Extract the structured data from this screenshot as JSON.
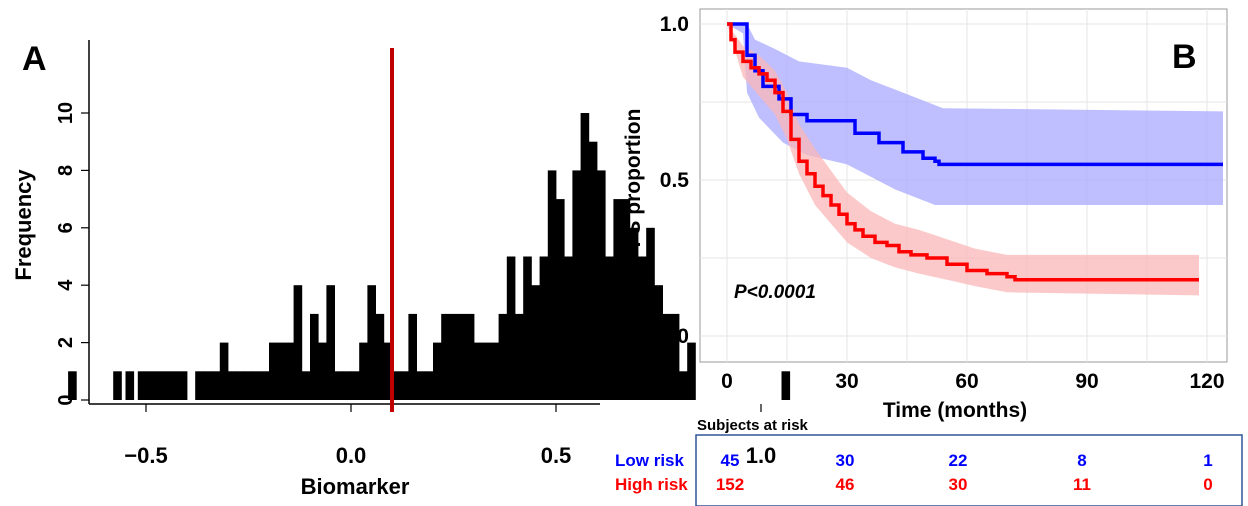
{
  "panel_a": {
    "letter": "A",
    "chart_data": {
      "type": "bar",
      "title": "",
      "xlabel": "Biomarker",
      "ylabel": "Frequency",
      "x_ticks": [
        "−0.5",
        "0.0",
        "0.5",
        "1.0"
      ],
      "y_ticks": [
        "0",
        "2",
        "4",
        "6",
        "8",
        "10"
      ],
      "xlim": [
        -0.7,
        1.1
      ],
      "ylim": [
        0,
        12
      ],
      "bin_width": 0.02,
      "bins": [
        [
          -0.68,
          1
        ],
        [
          -0.57,
          1
        ],
        [
          -0.54,
          1
        ],
        [
          -0.51,
          1
        ],
        [
          -0.49,
          1
        ],
        [
          -0.47,
          1
        ],
        [
          -0.45,
          1
        ],
        [
          -0.43,
          1
        ],
        [
          -0.41,
          1
        ],
        [
          -0.37,
          1
        ],
        [
          -0.35,
          1
        ],
        [
          -0.33,
          1
        ],
        [
          -0.31,
          2
        ],
        [
          -0.29,
          1
        ],
        [
          -0.27,
          1
        ],
        [
          -0.25,
          1
        ],
        [
          -0.23,
          1
        ],
        [
          -0.21,
          1
        ],
        [
          -0.19,
          2
        ],
        [
          -0.17,
          2
        ],
        [
          -0.15,
          2
        ],
        [
          -0.13,
          4
        ],
        [
          -0.11,
          1
        ],
        [
          -0.09,
          3
        ],
        [
          -0.07,
          2
        ],
        [
          -0.05,
          4
        ],
        [
          -0.03,
          1
        ],
        [
          -0.01,
          1
        ],
        [
          0.01,
          1
        ],
        [
          0.03,
          2
        ],
        [
          0.05,
          4
        ],
        [
          0.07,
          3
        ],
        [
          0.09,
          2
        ],
        [
          0.11,
          1
        ],
        [
          0.13,
          1
        ],
        [
          0.15,
          3
        ],
        [
          0.17,
          1
        ],
        [
          0.19,
          1
        ],
        [
          0.21,
          2
        ],
        [
          0.23,
          3
        ],
        [
          0.25,
          3
        ],
        [
          0.27,
          3
        ],
        [
          0.29,
          3
        ],
        [
          0.31,
          2
        ],
        [
          0.33,
          2
        ],
        [
          0.35,
          2
        ],
        [
          0.37,
          3
        ],
        [
          0.39,
          5
        ],
        [
          0.41,
          3
        ],
        [
          0.43,
          5
        ],
        [
          0.45,
          4
        ],
        [
          0.47,
          5
        ],
        [
          0.49,
          8
        ],
        [
          0.51,
          7
        ],
        [
          0.53,
          5
        ],
        [
          0.55,
          8
        ],
        [
          0.57,
          10
        ],
        [
          0.59,
          9
        ],
        [
          0.61,
          8
        ],
        [
          0.63,
          5
        ],
        [
          0.65,
          7
        ],
        [
          0.67,
          7
        ],
        [
          0.69,
          6
        ],
        [
          0.71,
          5
        ],
        [
          0.73,
          6
        ],
        [
          0.75,
          4
        ],
        [
          0.77,
          3
        ],
        [
          0.79,
          3
        ],
        [
          0.81,
          1
        ],
        [
          0.83,
          2
        ],
        [
          1.06,
          1
        ]
      ],
      "cutoff": 0.1,
      "cutoff_color": "#c00000",
      "bar_color": "#000000"
    }
  },
  "panel_b": {
    "letter": "B",
    "chart_data": {
      "type": "line",
      "title": "",
      "xlabel": "Time (months)",
      "ylabel": "PFS proportion",
      "x_ticks": [
        "0",
        "30",
        "60",
        "90",
        "120"
      ],
      "y_ticks": [
        "0.0",
        "0.5",
        "1.0"
      ],
      "xlim": [
        -8,
        127
      ],
      "ylim": [
        -0.07,
        1.03
      ],
      "grid": true,
      "annotation": "P<0.0001",
      "series": [
        {
          "name": "Low risk",
          "color": "#0000ff",
          "band_color": "#a9a9ff",
          "step": [
            [
              0,
              1.0
            ],
            [
              4,
              1.0
            ],
            [
              5,
              0.9
            ],
            [
              7,
              0.85
            ],
            [
              9,
              0.8
            ],
            [
              13,
              0.76
            ],
            [
              16,
              0.71
            ],
            [
              20,
              0.69
            ],
            [
              27,
              0.69
            ],
            [
              32,
              0.65
            ],
            [
              38,
              0.62
            ],
            [
              44,
              0.59
            ],
            [
              49,
              0.57
            ],
            [
              52,
              0.56
            ],
            [
              53,
              0.55
            ],
            [
              124,
              0.55
            ]
          ],
          "upper": [
            [
              0,
              1.0
            ],
            [
              5,
              1.0
            ],
            [
              7,
              0.95
            ],
            [
              12,
              0.92
            ],
            [
              18,
              0.88
            ],
            [
              30,
              0.86
            ],
            [
              36,
              0.82
            ],
            [
              42,
              0.79
            ],
            [
              50,
              0.75
            ],
            [
              54,
              0.73
            ],
            [
              124,
              0.72
            ]
          ],
          "lower": [
            [
              0,
              1.0
            ],
            [
              4,
              0.97
            ],
            [
              5,
              0.78
            ],
            [
              8,
              0.7
            ],
            [
              14,
              0.62
            ],
            [
              20,
              0.58
            ],
            [
              30,
              0.55
            ],
            [
              36,
              0.51
            ],
            [
              42,
              0.47
            ],
            [
              48,
              0.44
            ],
            [
              52,
              0.42
            ],
            [
              124,
              0.42
            ]
          ]
        },
        {
          "name": "High risk",
          "color": "#ff0000",
          "band_color": "#f9b7b7",
          "step": [
            [
              0,
              1.0
            ],
            [
              1,
              0.95
            ],
            [
              2,
              0.91
            ],
            [
              4,
              0.88
            ],
            [
              6,
              0.86
            ],
            [
              8,
              0.84
            ],
            [
              10,
              0.82
            ],
            [
              12,
              0.78
            ],
            [
              14,
              0.72
            ],
            [
              16,
              0.63
            ],
            [
              18,
              0.56
            ],
            [
              20,
              0.52
            ],
            [
              22,
              0.48
            ],
            [
              24,
              0.45
            ],
            [
              26,
              0.42
            ],
            [
              28,
              0.39
            ],
            [
              30,
              0.36
            ],
            [
              32,
              0.34
            ],
            [
              34,
              0.32
            ],
            [
              37,
              0.3
            ],
            [
              40,
              0.29
            ],
            [
              43,
              0.27
            ],
            [
              46,
              0.26
            ],
            [
              50,
              0.25
            ],
            [
              55,
              0.23
            ],
            [
              60,
              0.21
            ],
            [
              65,
              0.2
            ],
            [
              70,
              0.19
            ],
            [
              72,
              0.18
            ],
            [
              118,
              0.18
            ]
          ],
          "upper": [
            [
              0,
              1.0
            ],
            [
              4,
              0.93
            ],
            [
              8,
              0.9
            ],
            [
              12,
              0.85
            ],
            [
              15,
              0.78
            ],
            [
              18,
              0.68
            ],
            [
              22,
              0.6
            ],
            [
              26,
              0.53
            ],
            [
              30,
              0.46
            ],
            [
              36,
              0.4
            ],
            [
              42,
              0.36
            ],
            [
              48,
              0.34
            ],
            [
              55,
              0.31
            ],
            [
              62,
              0.28
            ],
            [
              70,
              0.26
            ],
            [
              118,
              0.26
            ]
          ],
          "lower": [
            [
              0,
              1.0
            ],
            [
              4,
              0.83
            ],
            [
              8,
              0.77
            ],
            [
              12,
              0.71
            ],
            [
              15,
              0.63
            ],
            [
              18,
              0.52
            ],
            [
              22,
              0.42
            ],
            [
              26,
              0.36
            ],
            [
              30,
              0.3
            ],
            [
              36,
              0.25
            ],
            [
              42,
              0.22
            ],
            [
              48,
              0.2
            ],
            [
              55,
              0.18
            ],
            [
              62,
              0.16
            ],
            [
              70,
              0.14
            ],
            [
              118,
              0.13
            ]
          ]
        }
      ]
    },
    "risk_table": {
      "title": "Subjects at risk",
      "rows": [
        {
          "label": "Low risk",
          "color": "#0000ff",
          "values": [
            "45",
            "30",
            "22",
            "8",
            "1"
          ]
        },
        {
          "label": "High risk",
          "color": "#ff0000",
          "values": [
            "152",
            "46",
            "30",
            "11",
            "0"
          ]
        }
      ]
    }
  }
}
